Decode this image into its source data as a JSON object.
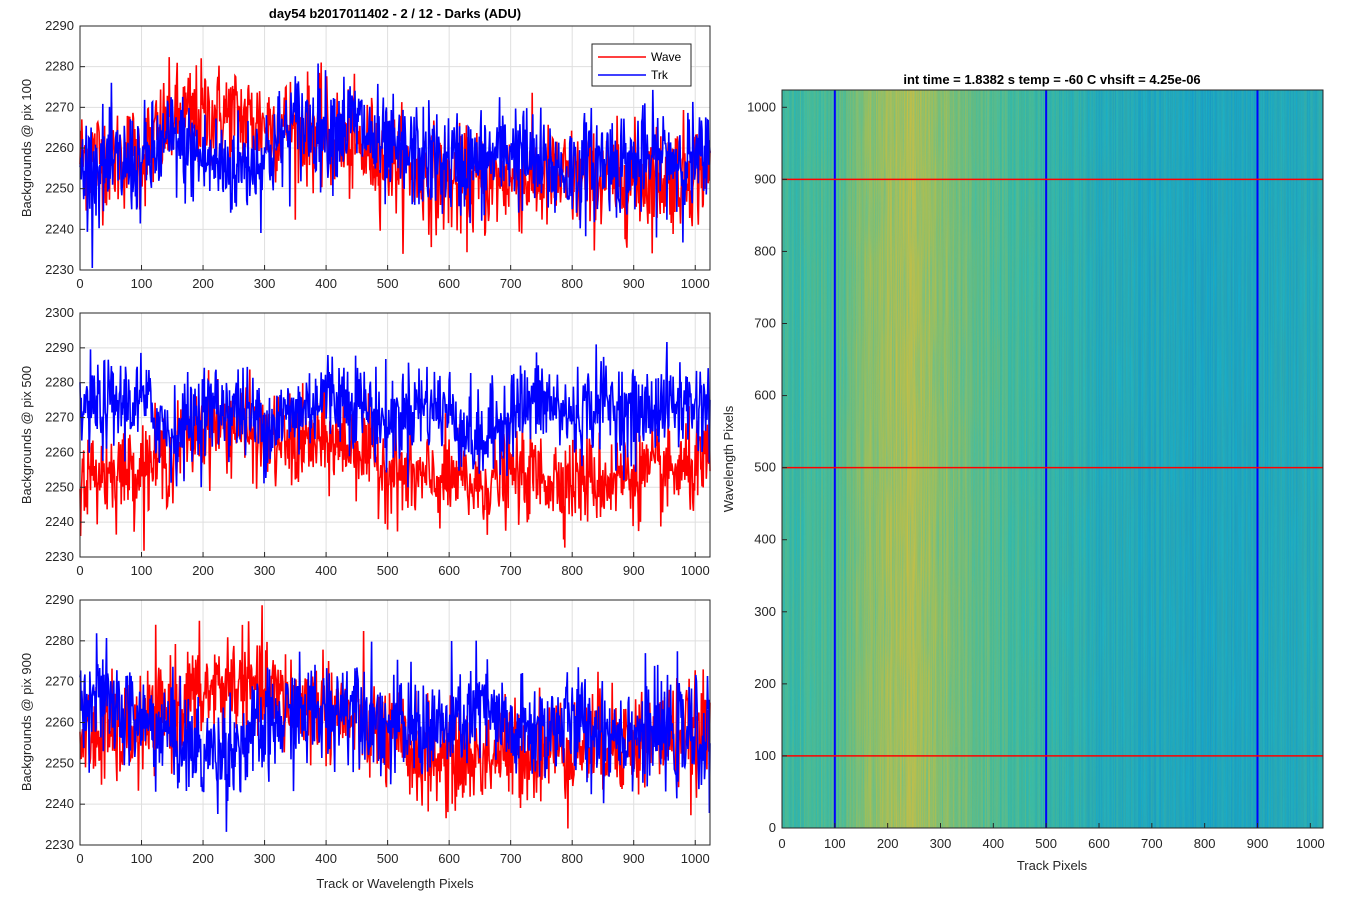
{
  "figure_title": "day54 b2017011402 - 2 / 12 - Darks (ADU)",
  "legend": {
    "location": "top-right"
  },
  "line_colors": {
    "Wave": "#ff0000",
    "Trk": "#0000ff"
  },
  "chart_data": [
    {
      "type": "line",
      "title": "day54 b2017011402 - 2 / 12 - Darks (ADU)",
      "xlabel": "",
      "ylabel": "Backgrounds @ pix 100",
      "xlim": [
        0,
        1024
      ],
      "ylim": [
        2230,
        2290
      ],
      "xticks": [
        0,
        100,
        200,
        300,
        400,
        500,
        600,
        700,
        800,
        900,
        1000
      ],
      "yticks": [
        2230,
        2240,
        2250,
        2260,
        2270,
        2280,
        2290
      ],
      "grid": true,
      "legend": [
        "Wave",
        "Trk"
      ],
      "series": [
        {
          "name": "Wave",
          "color": "#ff0000",
          "x": [
            0,
            100,
            150,
            200,
            250,
            300,
            350,
            400,
            450,
            500,
            550,
            600,
            650,
            700,
            750,
            800,
            850,
            900,
            950,
            1024
          ],
          "values": [
            2258,
            2258,
            2267,
            2268,
            2268,
            2266,
            2265,
            2263,
            2260,
            2258,
            2254,
            2251,
            2251,
            2253,
            2252,
            2252,
            2252,
            2252,
            2253,
            2255
          ]
        },
        {
          "name": "Trk",
          "color": "#0000ff",
          "x": [
            0,
            100,
            150,
            200,
            250,
            300,
            350,
            400,
            450,
            500,
            550,
            600,
            650,
            700,
            750,
            800,
            850,
            900,
            950,
            1024
          ],
          "values": [
            2255,
            2256,
            2262,
            2257,
            2255,
            2258,
            2266,
            2265,
            2266,
            2258,
            2258,
            2256,
            2256,
            2260,
            2255,
            2254,
            2257,
            2256,
            2258,
            2256
          ]
        }
      ]
    },
    {
      "type": "line",
      "title": "",
      "xlabel": "",
      "ylabel": "Backgrounds @ pix 500",
      "xlim": [
        0,
        1024
      ],
      "ylim": [
        2230,
        2300
      ],
      "xticks": [
        0,
        100,
        200,
        300,
        400,
        500,
        600,
        700,
        800,
        900,
        1000
      ],
      "yticks": [
        2230,
        2240,
        2250,
        2260,
        2270,
        2280,
        2290,
        2300
      ],
      "grid": true,
      "series": [
        {
          "name": "Wave",
          "color": "#ff0000",
          "x": [
            0,
            100,
            150,
            200,
            250,
            300,
            350,
            400,
            450,
            500,
            550,
            600,
            650,
            700,
            750,
            800,
            850,
            900,
            950,
            1024
          ],
          "values": [
            2253,
            2256,
            2259,
            2268,
            2268,
            2264,
            2262,
            2263,
            2262,
            2255,
            2252,
            2252,
            2250,
            2254,
            2253,
            2252,
            2252,
            2254,
            2254,
            2256
          ]
        },
        {
          "name": "Trk",
          "color": "#0000ff",
          "x": [
            0,
            100,
            150,
            200,
            250,
            300,
            350,
            400,
            450,
            500,
            550,
            600,
            650,
            700,
            750,
            800,
            850,
            900,
            950,
            1024
          ],
          "values": [
            2272,
            2275,
            2265,
            2272,
            2273,
            2268,
            2271,
            2277,
            2275,
            2268,
            2274,
            2272,
            2262,
            2272,
            2275,
            2270,
            2275,
            2270,
            2274,
            2273
          ]
        }
      ]
    },
    {
      "type": "line",
      "title": "",
      "xlabel": "Track or Wavelength Pixels",
      "ylabel": "Backgrounds @ pix 900",
      "xlim": [
        0,
        1024
      ],
      "ylim": [
        2230,
        2290
      ],
      "xticks": [
        0,
        100,
        200,
        300,
        400,
        500,
        600,
        700,
        800,
        900,
        1000
      ],
      "yticks": [
        2230,
        2240,
        2250,
        2260,
        2270,
        2280,
        2290
      ],
      "grid": true,
      "series": [
        {
          "name": "Wave",
          "color": "#ff0000",
          "x": [
            0,
            100,
            150,
            200,
            250,
            300,
            350,
            400,
            450,
            500,
            550,
            600,
            650,
            700,
            750,
            800,
            850,
            900,
            950,
            1024
          ],
          "values": [
            2256,
            2258,
            2264,
            2267,
            2270,
            2267,
            2265,
            2264,
            2260,
            2256,
            2252,
            2251,
            2252,
            2253,
            2254,
            2254,
            2256,
            2255,
            2257,
            2257
          ]
        },
        {
          "name": "Trk",
          "color": "#0000ff",
          "x": [
            0,
            100,
            150,
            200,
            250,
            300,
            350,
            400,
            450,
            500,
            550,
            600,
            650,
            700,
            750,
            800,
            850,
            900,
            950,
            1024
          ],
          "values": [
            2268,
            2260,
            2257,
            2252,
            2254,
            2258,
            2262,
            2262,
            2266,
            2258,
            2259,
            2258,
            2264,
            2257,
            2258,
            2260,
            2258,
            2258,
            2257,
            2256
          ]
        }
      ]
    },
    {
      "type": "heatmap",
      "title": "int time = 1.8382 s    temp = -60 C    vhsift = 4.25e-06",
      "xlabel": "Track Pixels",
      "ylabel": "Wavelength Pixels",
      "xlim": [
        0,
        1024
      ],
      "ylim": [
        0,
        1024
      ],
      "xticks": [
        0,
        100,
        200,
        300,
        400,
        500,
        600,
        700,
        800,
        900,
        1000
      ],
      "yticks": [
        0,
        100,
        200,
        300,
        400,
        500,
        600,
        700,
        800,
        900,
        1000
      ],
      "colormap": "parula",
      "column_profile": {
        "x": [
          0,
          100,
          150,
          200,
          250,
          300,
          350,
          400,
          500,
          600,
          700,
          800,
          900,
          1024
        ],
        "level": [
          0.58,
          0.62,
          0.72,
          0.78,
          0.8,
          0.74,
          0.68,
          0.63,
          0.56,
          0.5,
          0.48,
          0.46,
          0.47,
          0.5
        ]
      },
      "vertical_markers": {
        "color": "#0000ff",
        "x": [
          100,
          500,
          900
        ]
      },
      "horizontal_markers": {
        "color": "#ff0000",
        "y": [
          100,
          500,
          900
        ]
      }
    }
  ]
}
